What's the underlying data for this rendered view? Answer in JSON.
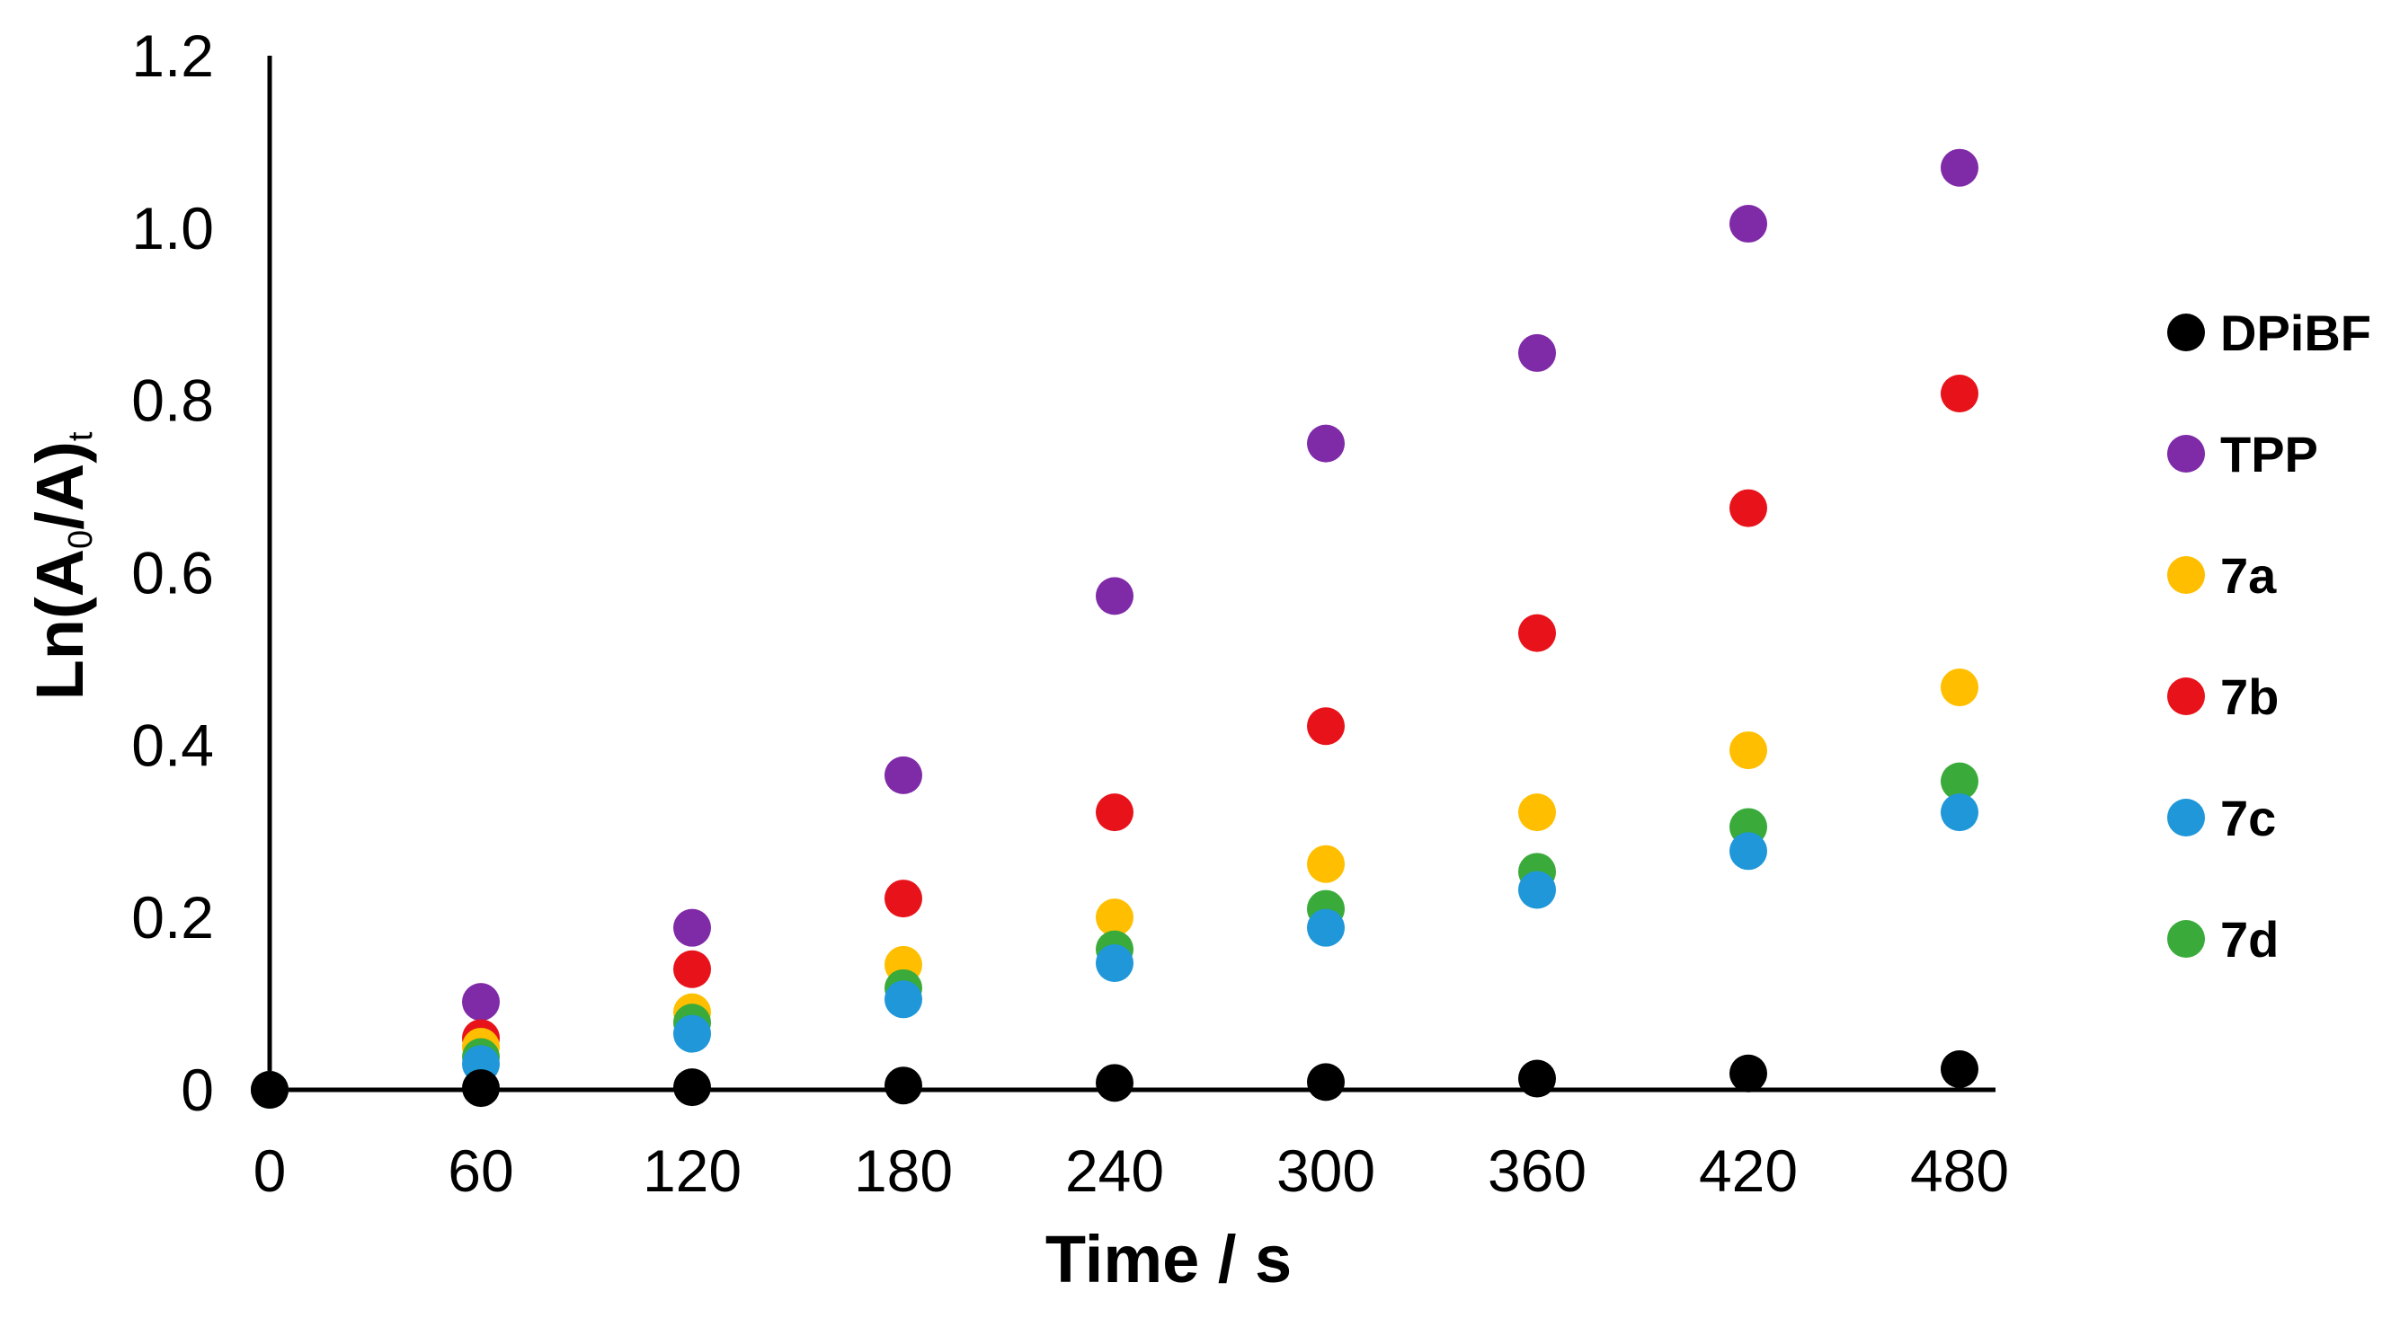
{
  "chart_data": {
    "type": "scatter",
    "title": "",
    "xlabel": "Time / s",
    "ylabel": {
      "main": "Ln(A",
      "sub0": "0",
      "mid": "/A)",
      "subt": "t"
    },
    "xlim": [
      0,
      480
    ],
    "ylim": [
      0,
      1.2
    ],
    "x_ticks": [
      0,
      60,
      120,
      180,
      240,
      300,
      360,
      420,
      480
    ],
    "x_tick_labels": [
      "0",
      "60",
      "120",
      "180",
      "240",
      "300",
      "360",
      "420",
      "480"
    ],
    "y_ticks": [
      0,
      0.2,
      0.4,
      0.6,
      0.8,
      1.0,
      1.2
    ],
    "y_tick_labels": [
      "0",
      "0.2",
      "0.4",
      "0.6",
      "0.8",
      "1.0",
      "1.2"
    ],
    "grid": false,
    "legend_position": "right",
    "x": [
      0,
      60,
      120,
      180,
      240,
      300,
      360,
      420,
      480
    ],
    "series": [
      {
        "name": "DPiBF",
        "color": "#000000",
        "values": [
          0,
          0.002,
          0.003,
          0.005,
          0.008,
          0.009,
          0.013,
          0.019,
          0.024
        ]
      },
      {
        "name": "TPP",
        "color": "#7f2aa7",
        "values": [
          0,
          0.102,
          0.188,
          0.365,
          0.573,
          0.75,
          0.855,
          1.005,
          1.07
        ]
      },
      {
        "name": "7a",
        "color": "#ffbf00",
        "values": [
          0,
          0.05,
          0.09,
          0.145,
          0.2,
          0.262,
          0.322,
          0.394,
          0.467
        ]
      },
      {
        "name": "7b",
        "color": "#e8121a",
        "values": [
          0,
          0.06,
          0.14,
          0.222,
          0.322,
          0.422,
          0.53,
          0.675,
          0.808
        ]
      },
      {
        "name": "7c",
        "color": "#1f97d8",
        "values": [
          0,
          0.03,
          0.065,
          0.105,
          0.147,
          0.188,
          0.232,
          0.277,
          0.322
        ]
      },
      {
        "name": "7d",
        "color": "#3aab3a",
        "values": [
          0,
          0.038,
          0.078,
          0.118,
          0.163,
          0.21,
          0.253,
          0.305,
          0.358
        ]
      }
    ]
  }
}
